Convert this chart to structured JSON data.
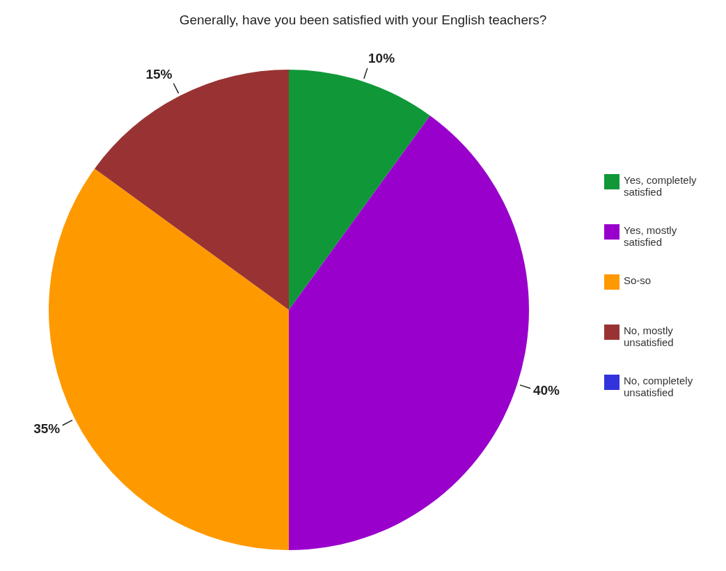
{
  "chart_data": {
    "type": "pie",
    "title": "Generally, have you been satisfied with your English teachers?",
    "categories": [
      "Yes, completely satisfied",
      "Yes, mostly satisfied",
      "So-so",
      "No, mostly unsatisfied",
      "No, completely unsatisfied"
    ],
    "values": [
      10,
      40,
      35,
      15,
      0
    ],
    "colors": [
      "#109838",
      "#9900cc",
      "#ff9900",
      "#993333",
      "#3333dd"
    ],
    "value_labels": [
      "10%",
      "40%",
      "35%",
      "15%",
      null
    ],
    "legend": "right"
  }
}
